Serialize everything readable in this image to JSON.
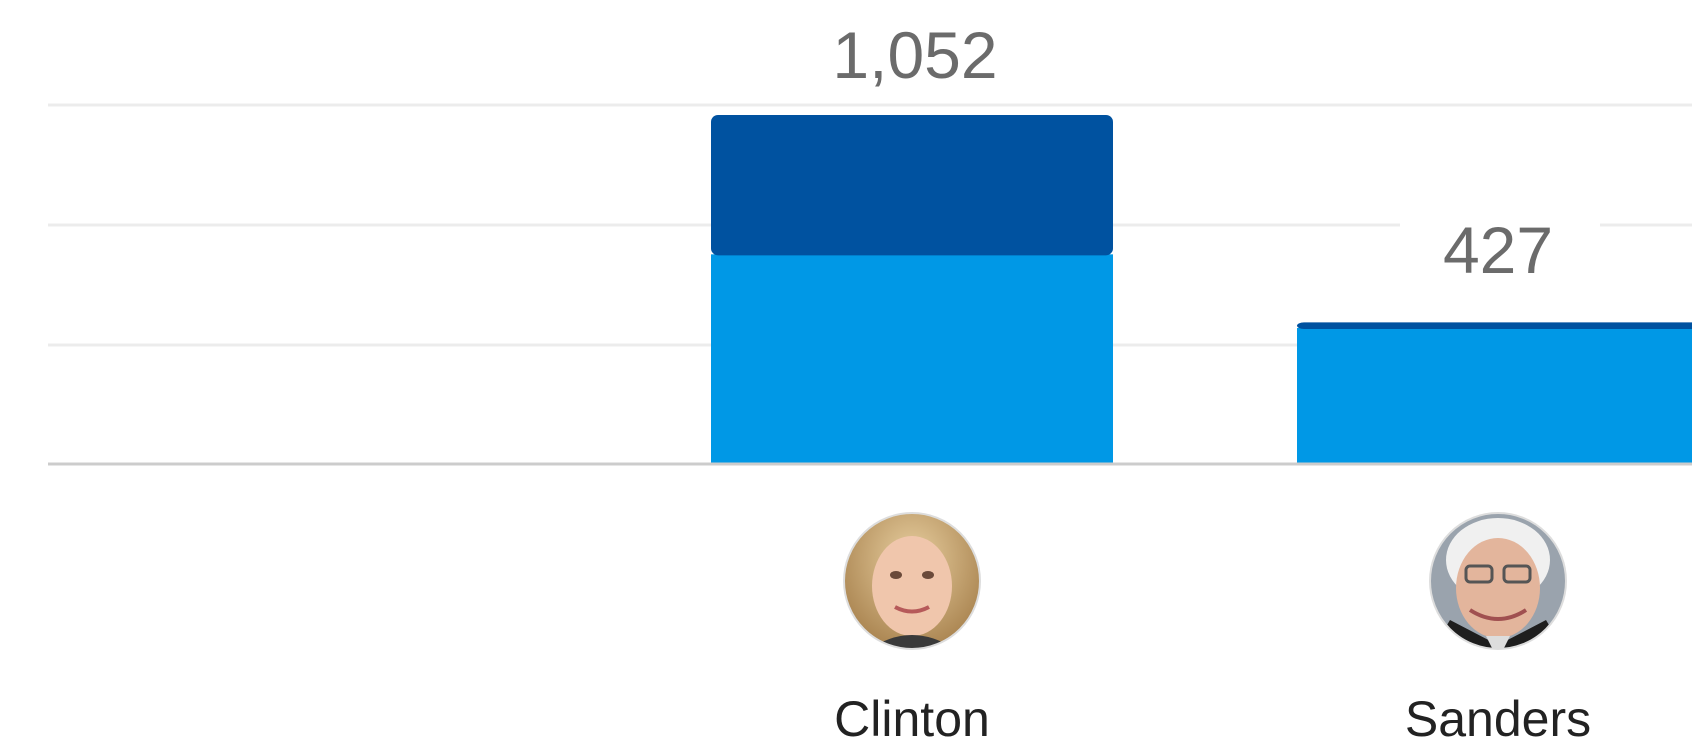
{
  "chart_data": {
    "type": "bar",
    "stacked": true,
    "categories": [
      "Clinton",
      "Sanders"
    ],
    "totals_display": [
      "1,052",
      "427"
    ],
    "series": [
      {
        "values": [
          632,
          410
        ],
        "color": "#0098e6"
      },
      {
        "values": [
          420,
          17
        ],
        "color": "#0052a0"
      }
    ],
    "ylim": [
      0,
      1100
    ],
    "grid": true,
    "candidates": [
      {
        "name": "Clinton",
        "avatar": "clinton-portrait"
      },
      {
        "name": "Sanders",
        "avatar": "sanders-portrait"
      }
    ]
  }
}
